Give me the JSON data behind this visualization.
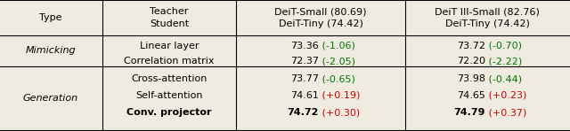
{
  "bg_color": "#f0ebe0",
  "sections": [
    {
      "type_label": "Mimicking",
      "rows": [
        {
          "method": "Linear layer",
          "col1_val": "73.36",
          "col1_diff": " (-1.06)",
          "col1_diff_color": "#007700",
          "col2_val": "73.72",
          "col2_diff": " (-0.70)",
          "col2_diff_color": "#007700"
        },
        {
          "method": "Correlation matrix",
          "col1_val": "72.37",
          "col1_diff": " (-2.05)",
          "col1_diff_color": "#007700",
          "col2_val": "72.20",
          "col2_diff": " (-2.22)",
          "col2_diff_color": "#007700"
        }
      ]
    },
    {
      "type_label": "Generation",
      "rows": [
        {
          "method": "Cross-attention",
          "col1_val": "73.77",
          "col1_diff": " (-0.65)",
          "col1_diff_color": "#007700",
          "col2_val": "73.98",
          "col2_diff": " (-0.44)",
          "col2_diff_color": "#007700",
          "bold": false
        },
        {
          "method": "Self-attention",
          "col1_val": "74.61",
          "col1_diff": " (+0.19)",
          "col1_diff_color": "#cc0000",
          "col2_val": "74.65",
          "col2_diff": " (+0.23)",
          "col2_diff_color": "#cc0000",
          "bold": false
        },
        {
          "method": "Conv. projector",
          "col1_val": "74.72",
          "col1_diff": " (+0.30)",
          "col1_diff_color": "#cc0000",
          "col2_val": "74.79",
          "col2_diff": " (+0.37)",
          "col2_diff_color": "#cc0000",
          "bold": true
        }
      ]
    }
  ],
  "font_size": 8.0,
  "line_color": "#444444",
  "thick_lw": 1.5,
  "thin_lw": 0.8
}
